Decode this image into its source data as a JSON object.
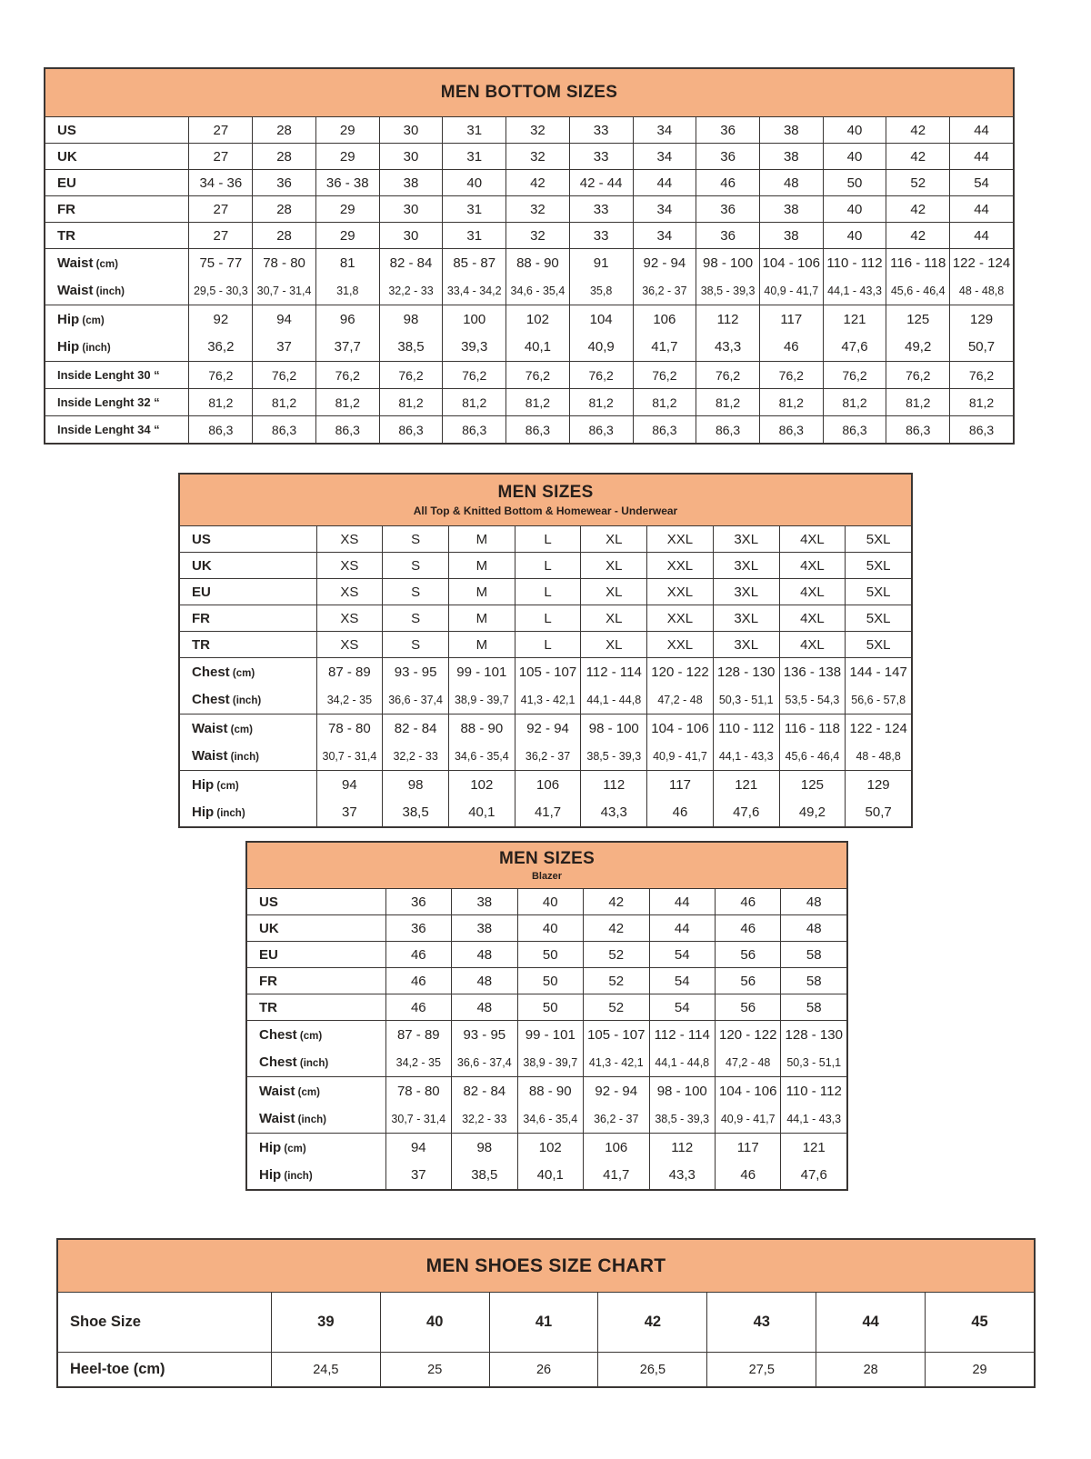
{
  "colors": {
    "header_band": "#F5B184",
    "border": "#3A3634",
    "text": "#262321",
    "background": "#FFFFFF"
  },
  "tables": [
    {
      "id": "men-bottom-sizes",
      "title": "MEN BOTTOM SIZES",
      "subtitle": "",
      "rows": [
        {
          "label": "US",
          "kind": "size",
          "values": [
            "27",
            "28",
            "29",
            "30",
            "31",
            "32",
            "33",
            "34",
            "36",
            "38",
            "40",
            "42",
            "44"
          ]
        },
        {
          "label": "UK",
          "kind": "size",
          "values": [
            "27",
            "28",
            "29",
            "30",
            "31",
            "32",
            "33",
            "34",
            "36",
            "38",
            "40",
            "42",
            "44"
          ]
        },
        {
          "label": "EU",
          "kind": "size",
          "values": [
            "34 - 36",
            "36",
            "36 - 38",
            "38",
            "40",
            "42",
            "42 - 44",
            "44",
            "46",
            "48",
            "50",
            "52",
            "54"
          ]
        },
        {
          "label": "FR",
          "kind": "size",
          "values": [
            "27",
            "28",
            "29",
            "30",
            "31",
            "32",
            "33",
            "34",
            "36",
            "38",
            "40",
            "42",
            "44"
          ]
        },
        {
          "label": "TR",
          "kind": "size",
          "values": [
            "27",
            "28",
            "29",
            "30",
            "31",
            "32",
            "33",
            "34",
            "36",
            "38",
            "40",
            "42",
            "44"
          ]
        },
        {
          "label": "Waist",
          "unit": "(cm)",
          "kind": "range",
          "values": [
            "75 - 77",
            "78 - 80",
            "81",
            "82 - 84",
            "85 - 87",
            "88 - 90",
            "91",
            "92 - 94",
            "98 - 100",
            "104 - 106",
            "110 - 112",
            "116 - 118",
            "122 - 124"
          ]
        },
        {
          "label": "Waist",
          "unit": "(inch)",
          "kind": "rangeS",
          "cont": true,
          "values": [
            "29,5 - 30,3",
            "30,7 - 31,4",
            "31,8",
            "32,2 - 33",
            "33,4 - 34,2",
            "34,6 - 35,4",
            "35,8",
            "36,2 - 37",
            "38,5 - 39,3",
            "40,9 - 41,7",
            "44,1 - 43,3",
            "45,6 - 46,4",
            "48 - 48,8"
          ]
        },
        {
          "label": "Hip",
          "unit": "(cm)",
          "kind": "range",
          "values": [
            "92",
            "94",
            "96",
            "98",
            "100",
            "102",
            "104",
            "106",
            "112",
            "117",
            "121",
            "125",
            "129"
          ]
        },
        {
          "label": "Hip",
          "unit": "(inch)",
          "kind": "range",
          "cont": true,
          "values": [
            "36,2",
            "37",
            "37,7",
            "38,5",
            "39,3",
            "40,1",
            "40,9",
            "41,7",
            "43,3",
            "46",
            "47,6",
            "49,2",
            "50,7"
          ]
        },
        {
          "label": "Inside Lenght 30 “",
          "kind": "il",
          "values": [
            "76,2",
            "76,2",
            "76,2",
            "76,2",
            "76,2",
            "76,2",
            "76,2",
            "76,2",
            "76,2",
            "76,2",
            "76,2",
            "76,2",
            "76,2"
          ]
        },
        {
          "label": "Inside Lenght 32 “",
          "kind": "il",
          "values": [
            "81,2",
            "81,2",
            "81,2",
            "81,2",
            "81,2",
            "81,2",
            "81,2",
            "81,2",
            "81,2",
            "81,2",
            "81,2",
            "81,2",
            "81,2"
          ]
        },
        {
          "label": "Inside Lenght 34 “",
          "kind": "il",
          "values": [
            "86,3",
            "86,3",
            "86,3",
            "86,3",
            "86,3",
            "86,3",
            "86,3",
            "86,3",
            "86,3",
            "86,3",
            "86,3",
            "86,3",
            "86,3"
          ]
        }
      ]
    },
    {
      "id": "men-sizes-top",
      "title": "MEN SIZES",
      "subtitle": "All Top & Knitted Bottom & Homewear - Underwear",
      "rows": [
        {
          "label": "US",
          "kind": "size",
          "values": [
            "XS",
            "S",
            "M",
            "L",
            "XL",
            "XXL",
            "3XL",
            "4XL",
            "5XL"
          ]
        },
        {
          "label": "UK",
          "kind": "size",
          "values": [
            "XS",
            "S",
            "M",
            "L",
            "XL",
            "XXL",
            "3XL",
            "4XL",
            "5XL"
          ]
        },
        {
          "label": "EU",
          "kind": "size",
          "values": [
            "XS",
            "S",
            "M",
            "L",
            "XL",
            "XXL",
            "3XL",
            "4XL",
            "5XL"
          ]
        },
        {
          "label": "FR",
          "kind": "size",
          "values": [
            "XS",
            "S",
            "M",
            "L",
            "XL",
            "XXL",
            "3XL",
            "4XL",
            "5XL"
          ]
        },
        {
          "label": "TR",
          "kind": "size",
          "values": [
            "XS",
            "S",
            "M",
            "L",
            "XL",
            "XXL",
            "3XL",
            "4XL",
            "5XL"
          ]
        },
        {
          "label": "Chest",
          "unit": "(cm)",
          "kind": "range",
          "values": [
            "87 - 89",
            "93 - 95",
            "99 - 101",
            "105 - 107",
            "112 - 114",
            "120 - 122",
            "128 - 130",
            "136 - 138",
            "144 - 147"
          ]
        },
        {
          "label": "Chest",
          "unit": "(inch)",
          "kind": "rangeS",
          "cont": true,
          "values": [
            "34,2 - 35",
            "36,6 - 37,4",
            "38,9 - 39,7",
            "41,3 - 42,1",
            "44,1 - 44,8",
            "47,2 - 48",
            "50,3 - 51,1",
            "53,5 - 54,3",
            "56,6 - 57,8"
          ]
        },
        {
          "label": "Waist",
          "unit": "(cm)",
          "kind": "range",
          "values": [
            "78 - 80",
            "82 - 84",
            "88 - 90",
            "92 - 94",
            "98 - 100",
            "104 - 106",
            "110 - 112",
            "116 - 118",
            "122 - 124"
          ]
        },
        {
          "label": "Waist",
          "unit": "(inch)",
          "kind": "rangeS",
          "cont": true,
          "values": [
            "30,7 - 31,4",
            "32,2 - 33",
            "34,6 - 35,4",
            "36,2 - 37",
            "38,5 - 39,3",
            "40,9 - 41,7",
            "44,1 - 43,3",
            "45,6 - 46,4",
            "48 - 48,8"
          ]
        },
        {
          "label": "Hip",
          "unit": "(cm)",
          "kind": "range",
          "values": [
            "94",
            "98",
            "102",
            "106",
            "112",
            "117",
            "121",
            "125",
            "129"
          ]
        },
        {
          "label": "Hip",
          "unit": "(inch)",
          "kind": "range",
          "cont": true,
          "values": [
            "37",
            "38,5",
            "40,1",
            "41,7",
            "43,3",
            "46",
            "47,6",
            "49,2",
            "50,7"
          ]
        }
      ]
    },
    {
      "id": "men-sizes-blazer",
      "title": "MEN SIZES",
      "subtitle": "Blazer",
      "rows": [
        {
          "label": "US",
          "kind": "size",
          "values": [
            "36",
            "38",
            "40",
            "42",
            "44",
            "46",
            "48"
          ]
        },
        {
          "label": "UK",
          "kind": "size",
          "values": [
            "36",
            "38",
            "40",
            "42",
            "44",
            "46",
            "48"
          ]
        },
        {
          "label": "EU",
          "kind": "size",
          "values": [
            "46",
            "48",
            "50",
            "52",
            "54",
            "56",
            "58"
          ]
        },
        {
          "label": "FR",
          "kind": "size",
          "values": [
            "46",
            "48",
            "50",
            "52",
            "54",
            "56",
            "58"
          ]
        },
        {
          "label": "TR",
          "kind": "size",
          "values": [
            "46",
            "48",
            "50",
            "52",
            "54",
            "56",
            "58"
          ]
        },
        {
          "label": "Chest",
          "unit": "(cm)",
          "kind": "range",
          "values": [
            "87 - 89",
            "93 - 95",
            "99 - 101",
            "105 - 107",
            "112 - 114",
            "120 - 122",
            "128 - 130"
          ]
        },
        {
          "label": "Chest",
          "unit": "(inch)",
          "kind": "rangeS",
          "cont": true,
          "values": [
            "34,2 - 35",
            "36,6 - 37,4",
            "38,9 - 39,7",
            "41,3 - 42,1",
            "44,1 - 44,8",
            "47,2 - 48",
            "50,3 - 51,1"
          ]
        },
        {
          "label": "Waist",
          "unit": "(cm)",
          "kind": "range",
          "values": [
            "78 - 80",
            "82 - 84",
            "88 - 90",
            "92 - 94",
            "98 - 100",
            "104 - 106",
            "110 - 112"
          ]
        },
        {
          "label": "Waist",
          "unit": "(inch)",
          "kind": "rangeS",
          "cont": true,
          "values": [
            "30,7 - 31,4",
            "32,2 - 33",
            "34,6 - 35,4",
            "36,2 - 37",
            "38,5 - 39,3",
            "40,9 - 41,7",
            "44,1 - 43,3"
          ]
        },
        {
          "label": "Hip",
          "unit": "(cm)",
          "kind": "range",
          "values": [
            "94",
            "98",
            "102",
            "106",
            "112",
            "117",
            "121"
          ]
        },
        {
          "label": "Hip",
          "unit": "(inch)",
          "kind": "range",
          "cont": true,
          "values": [
            "37",
            "38,5",
            "40,1",
            "41,7",
            "43,3",
            "46",
            "47,6"
          ]
        }
      ]
    },
    {
      "id": "men-shoes-size-chart",
      "title": "MEN SHOES SIZE CHART",
      "subtitle": "",
      "rows": [
        {
          "label": "Shoe Size",
          "kind": "shoe",
          "values": [
            "39",
            "40",
            "41",
            "42",
            "43",
            "44",
            "45"
          ]
        },
        {
          "label": "Heel-toe",
          "unit": "(cm)",
          "kind": "heel",
          "values": [
            "24,5",
            "25",
            "26",
            "26,5",
            "27,5",
            "28",
            "29"
          ]
        }
      ]
    }
  ]
}
